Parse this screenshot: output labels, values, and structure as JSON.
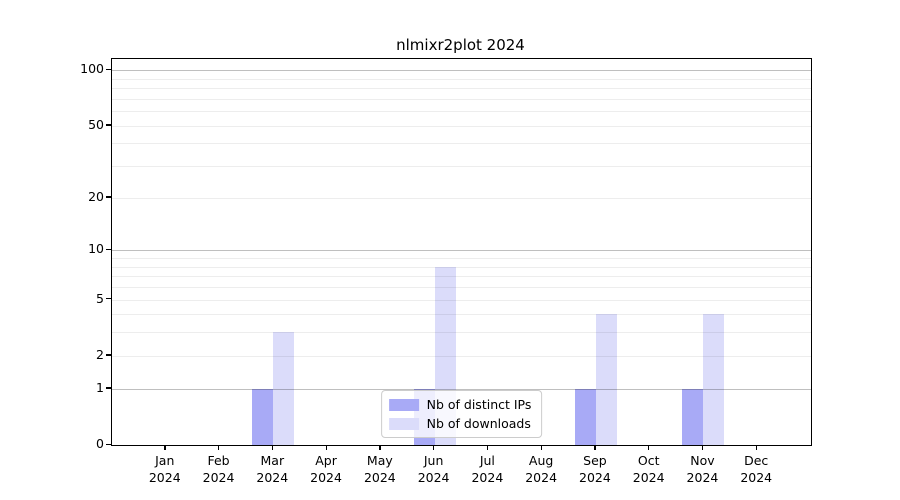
{
  "title": "nlmixr2plot 2024",
  "chart_data": {
    "type": "bar",
    "title": "nlmixr2plot 2024",
    "xlabel": "",
    "ylabel": "",
    "categories": [
      "Jan",
      "Feb",
      "Mar",
      "Apr",
      "May",
      "Jun",
      "Jul",
      "Aug",
      "Sep",
      "Oct",
      "Nov",
      "Dec"
    ],
    "year_label": "2024",
    "series": [
      {
        "name": "Nb of distinct IPs",
        "color": "#a8aaf6",
        "values": [
          0,
          0,
          1,
          0,
          0,
          1,
          0,
          0,
          1,
          0,
          1,
          0
        ]
      },
      {
        "name": "Nb of downloads",
        "color": "#dbdcfa",
        "values": [
          0,
          0,
          3,
          0,
          0,
          8,
          0,
          0,
          4,
          0,
          4,
          0
        ]
      }
    ],
    "y_scale": "log1p",
    "ylim": [
      0,
      115
    ],
    "y_ticks": [
      0,
      1,
      2,
      5,
      10,
      20,
      50,
      100
    ],
    "gridlines": {
      "decade": [
        1,
        10,
        100
      ],
      "minor": [
        2,
        3,
        4,
        5,
        6,
        7,
        8,
        9,
        20,
        30,
        40,
        50,
        60,
        70,
        80,
        90
      ]
    },
    "grid": true,
    "legend_position": "lower-center",
    "colors": {
      "frame": "#000000",
      "decade_gridline": "#bfbfbf",
      "minor_gridline": "#ececec",
      "legend_border": "#cccccc"
    }
  }
}
